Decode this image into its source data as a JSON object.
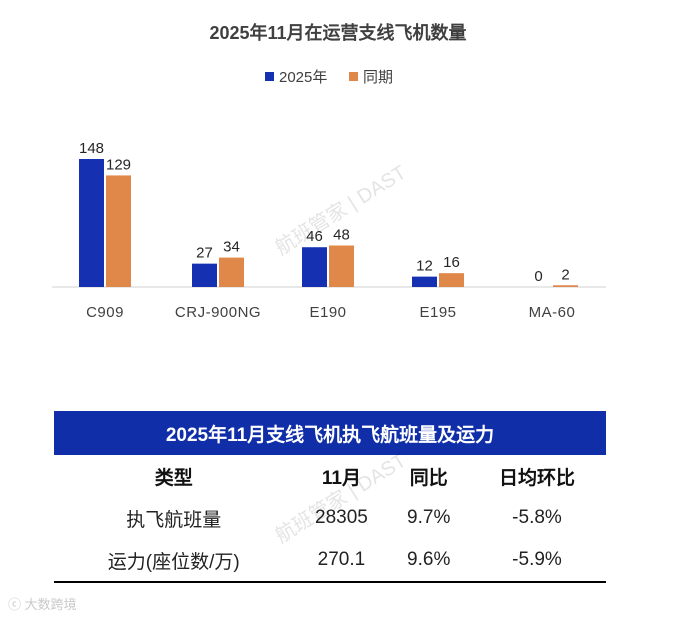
{
  "chart_data": {
    "type": "bar",
    "title": "2025年11月在运营支线飞机数量",
    "categories": [
      "C909",
      "CRJ-900NG",
      "E190",
      "E195",
      "MA-60"
    ],
    "series": [
      {
        "name": "2025年",
        "values": [
          148,
          27,
          46,
          12,
          0
        ],
        "color": "#1530b0"
      },
      {
        "name": "同期",
        "values": [
          129,
          34,
          48,
          16,
          2
        ],
        "color": "#e0874a"
      }
    ],
    "xlabel": "",
    "ylabel": "",
    "ylim": [
      0,
      148
    ],
    "grid": false,
    "legend_position": "top-center"
  },
  "table": {
    "title": "2025年11月支线飞机执飞航班量及运力",
    "columns": [
      "类型",
      "11月",
      "同比",
      "日均环比"
    ],
    "rows": [
      [
        "执飞航班量",
        "28305",
        "9.7%",
        "-5.8%"
      ],
      [
        "运力(座位数/万)",
        "270.1",
        "9.6%",
        "-5.9%"
      ]
    ]
  },
  "watermarks": {
    "center": "航班管家 | DAST",
    "corner": "ⓒ 大数跨境"
  }
}
